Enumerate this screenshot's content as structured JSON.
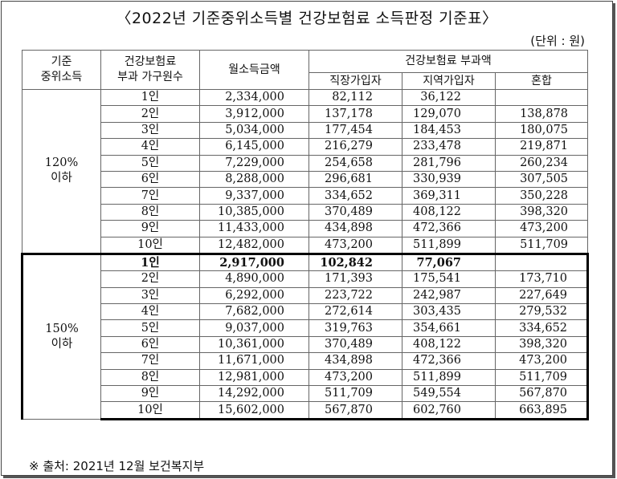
{
  "title": "〈2022년 기준중위소득별 건강보험료 소득판정 기준표〉",
  "unit": "(단위 : 원)",
  "headers": {
    "median_income_line1": "기준",
    "median_income_line2": "중위소득",
    "household_line1": "건강보험료",
    "household_line2": "부과 가구원수",
    "monthly_income": "월소득금액",
    "premium_group": "건강보험료 부과액",
    "employee": "직장가입자",
    "regional": "지역가입자",
    "mixed": "혼합"
  },
  "sections": [
    {
      "label_line1": "120%",
      "label_line2": "이하",
      "rows": [
        {
          "members": "1인",
          "income": "2,334,000",
          "employee": "82,112",
          "regional": "36,122",
          "mixed": ""
        },
        {
          "members": "2인",
          "income": "3,912,000",
          "employee": "137,178",
          "regional": "129,070",
          "mixed": "138,878"
        },
        {
          "members": "3인",
          "income": "5,034,000",
          "employee": "177,454",
          "regional": "184,453",
          "mixed": "180,075"
        },
        {
          "members": "4인",
          "income": "6,145,000",
          "employee": "216,279",
          "regional": "233,478",
          "mixed": "219,871"
        },
        {
          "members": "5인",
          "income": "7,229,000",
          "employee": "254,658",
          "regional": "281,796",
          "mixed": "260,234"
        },
        {
          "members": "6인",
          "income": "8,288,000",
          "employee": "296,681",
          "regional": "330,939",
          "mixed": "307,505"
        },
        {
          "members": "7인",
          "income": "9,337,000",
          "employee": "334,652",
          "regional": "369,311",
          "mixed": "350,228"
        },
        {
          "members": "8인",
          "income": "10,385,000",
          "employee": "370,489",
          "regional": "408,122",
          "mixed": "398,320"
        },
        {
          "members": "9인",
          "income": "11,433,000",
          "employee": "434,898",
          "regional": "472,366",
          "mixed": "473,200"
        },
        {
          "members": "10인",
          "income": "12,482,000",
          "employee": "473,200",
          "regional": "511,899",
          "mixed": "511,709"
        }
      ]
    },
    {
      "label_line1": "150%",
      "label_line2": "이하",
      "rows": [
        {
          "members": "1인",
          "income": "2,917,000",
          "employee": "102,842",
          "regional": "77,067",
          "mixed": ""
        },
        {
          "members": "2인",
          "income": "4,890,000",
          "employee": "171,393",
          "regional": "175,541",
          "mixed": "173,710"
        },
        {
          "members": "3인",
          "income": "6,292,000",
          "employee": "223,722",
          "regional": "242,987",
          "mixed": "227,649"
        },
        {
          "members": "4인",
          "income": "7,682,000",
          "employee": "272,614",
          "regional": "303,435",
          "mixed": "279,532"
        },
        {
          "members": "5인",
          "income": "9,037,000",
          "employee": "319,763",
          "regional": "354,661",
          "mixed": "334,652"
        },
        {
          "members": "6인",
          "income": "10,361,000",
          "employee": "370,489",
          "regional": "408,122",
          "mixed": "398,320"
        },
        {
          "members": "7인",
          "income": "11,671,000",
          "employee": "434,898",
          "regional": "472,366",
          "mixed": "473,200"
        },
        {
          "members": "8인",
          "income": "12,981,000",
          "employee": "473,200",
          "regional": "511,899",
          "mixed": "511,709"
        },
        {
          "members": "9인",
          "income": "14,292,000",
          "employee": "511,709",
          "regional": "549,554",
          "mixed": "567,870"
        },
        {
          "members": "10인",
          "income": "15,602,000",
          "employee": "567,870",
          "regional": "602,760",
          "mixed": "663,895"
        }
      ]
    }
  ],
  "source": "※ 출처: 2021년 12월 보건복지부"
}
